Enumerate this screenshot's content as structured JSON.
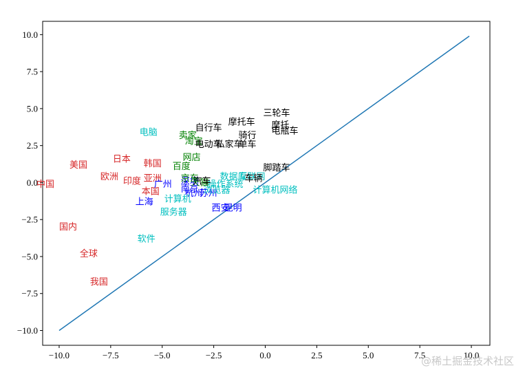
{
  "chart_data": {
    "type": "scatter",
    "title": "",
    "xlabel": "",
    "ylabel": "",
    "xlim": [
      -10.8,
      10.9
    ],
    "ylim": [
      -11.0,
      10.9
    ],
    "grid": false,
    "xticks": [
      -10.0,
      -7.5,
      -5.0,
      -2.5,
      0.0,
      2.5,
      5.0,
      7.5,
      10.0
    ],
    "yticks": [
      -10.0,
      -7.5,
      -5.0,
      -2.5,
      0.0,
      2.5,
      5.0,
      7.5,
      10.0
    ],
    "xtick_labels": [
      "−10.0",
      "−7.5",
      "−5.0",
      "−2.5",
      "0.0",
      "2.5",
      "5.0",
      "7.5",
      "10.0"
    ],
    "ytick_labels": [
      "−10.0",
      "−7.5",
      "−5.0",
      "−2.5",
      "0.0",
      "2.5",
      "5.0",
      "7.5",
      "10.0"
    ],
    "line": {
      "color": "#1f77b4",
      "x": [
        -10.0,
        9.9
      ],
      "y": [
        -10.0,
        9.9
      ]
    },
    "colors": {
      "red": "#d62728",
      "blue": "#0000ff",
      "green": "#008000",
      "cyan": "#00bfbf",
      "black": "#000000"
    },
    "points": [
      {
        "text": "中国",
        "x": -11.1,
        "y": -0.3,
        "color": "red"
      },
      {
        "text": "美国",
        "x": -9.5,
        "y": 1.0,
        "color": "red"
      },
      {
        "text": "日本",
        "x": -7.4,
        "y": 1.4,
        "color": "red"
      },
      {
        "text": "韩国",
        "x": -5.9,
        "y": 1.1,
        "color": "red"
      },
      {
        "text": "欧洲",
        "x": -8.0,
        "y": 0.2,
        "color": "red"
      },
      {
        "text": "印度",
        "x": -6.9,
        "y": -0.1,
        "color": "red"
      },
      {
        "text": "亚洲",
        "x": -5.9,
        "y": 0.1,
        "color": "red"
      },
      {
        "text": "本国",
        "x": -6.0,
        "y": -0.8,
        "color": "red"
      },
      {
        "text": "国内",
        "x": -10.0,
        "y": -3.2,
        "color": "red"
      },
      {
        "text": "全球",
        "x": -9.0,
        "y": -5.0,
        "color": "red"
      },
      {
        "text": "我国",
        "x": -8.5,
        "y": -6.9,
        "color": "red"
      },
      {
        "text": "广州",
        "x": -5.4,
        "y": -0.3,
        "color": "blue"
      },
      {
        "text": "上海",
        "x": -6.3,
        "y": -1.5,
        "color": "blue"
      },
      {
        "text": "深圳",
        "x": -4.1,
        "y": -0.1,
        "color": "blue"
      },
      {
        "text": "南京",
        "x": -4.1,
        "y": -0.6,
        "color": "blue"
      },
      {
        "text": "杭州",
        "x": -3.9,
        "y": -0.9,
        "color": "blue"
      },
      {
        "text": "苏州",
        "x": -3.2,
        "y": -0.9,
        "color": "blue"
      },
      {
        "text": "西安",
        "x": -2.6,
        "y": -1.9,
        "color": "blue"
      },
      {
        "text": "昆明",
        "x": -2.0,
        "y": -1.9,
        "color": "blue"
      },
      {
        "text": "卖家",
        "x": -4.2,
        "y": 3.0,
        "color": "green"
      },
      {
        "text": "淘宝",
        "x": -3.9,
        "y": 2.6,
        "color": "green"
      },
      {
        "text": "网店",
        "x": -4.0,
        "y": 1.5,
        "color": "green"
      },
      {
        "text": "百度",
        "x": -4.5,
        "y": 0.9,
        "color": "green"
      },
      {
        "text": "京东",
        "x": -4.1,
        "y": 0.1,
        "color": "green"
      },
      {
        "text": "天猫",
        "x": -3.6,
        "y": -0.2,
        "color": "green"
      },
      {
        "text": "电脑",
        "x": -6.1,
        "y": 3.2,
        "color": "cyan"
      },
      {
        "text": "计算机",
        "x": -4.9,
        "y": -1.3,
        "color": "cyan"
      },
      {
        "text": "服务器",
        "x": -5.1,
        "y": -2.2,
        "color": "cyan"
      },
      {
        "text": "软件",
        "x": -6.2,
        "y": -4.0,
        "color": "cyan"
      },
      {
        "text": "计算机网络",
        "x": -0.6,
        "y": -0.7,
        "color": "cyan"
      },
      {
        "text": "操作系统",
        "x": -2.8,
        "y": -0.3,
        "color": "cyan"
      },
      {
        "text": "浏览器",
        "x": -3.0,
        "y": -0.7,
        "color": "cyan"
      },
      {
        "text": "数据库",
        "x": -2.2,
        "y": 0.2,
        "color": "cyan"
      },
      {
        "text": "互联网",
        "x": -1.3,
        "y": 0.2,
        "color": "cyan"
      },
      {
        "text": "自行车",
        "x": -3.4,
        "y": 3.5,
        "color": "black"
      },
      {
        "text": "摩托车",
        "x": -1.8,
        "y": 3.9,
        "color": "black"
      },
      {
        "text": "三轮车",
        "x": -0.1,
        "y": 4.5,
        "color": "black"
      },
      {
        "text": "摩托",
        "x": 0.3,
        "y": 3.7,
        "color": "black"
      },
      {
        "text": "电瓶车",
        "x": 0.3,
        "y": 3.3,
        "color": "black"
      },
      {
        "text": "骑行",
        "x": -1.3,
        "y": 3.0,
        "color": "black"
      },
      {
        "text": "电动车",
        "x": -3.4,
        "y": 2.4,
        "color": "black"
      },
      {
        "text": "私家车",
        "x": -2.4,
        "y": 2.4,
        "color": "black"
      },
      {
        "text": "单车",
        "x": -1.3,
        "y": 2.4,
        "color": "black"
      },
      {
        "text": "脚踏车",
        "x": -0.1,
        "y": 0.8,
        "color": "black"
      },
      {
        "text": "车辆",
        "x": -1.0,
        "y": 0.1,
        "color": "black"
      },
      {
        "text": "汽车",
        "x": -3.5,
        "y": -0.1,
        "color": "black"
      }
    ]
  },
  "watermark": "@稀土掘金技术社区"
}
